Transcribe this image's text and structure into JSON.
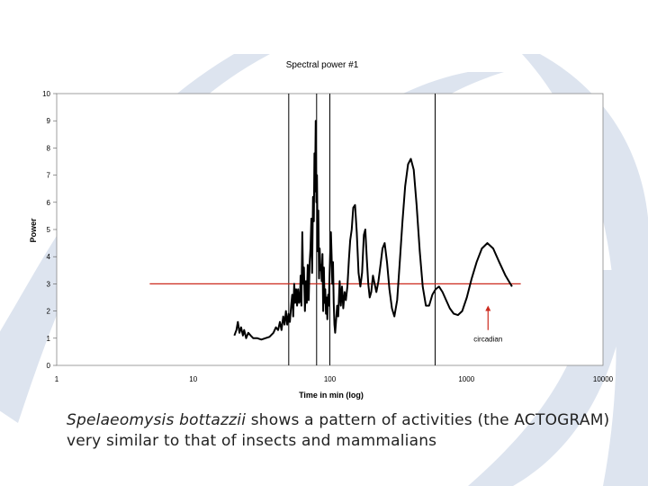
{
  "caption": {
    "species": "Spelaeomysis bottazzii",
    "text": " shows a pattern of activities (the ACTOGRAM) very similar to that of insects and mammalians"
  },
  "colors": {
    "background_decoration": "#dde4ef",
    "curve": "#000000",
    "threshold_line": "#cc2a1e",
    "annotation_arrow": "#cc2a1e",
    "vertical_markers": "#000000"
  },
  "chart_data": {
    "type": "line",
    "title": "Spectral power #1",
    "xlabel": "Time in min (log)",
    "ylabel": "Power",
    "x_scale": "log",
    "xlim": [
      1,
      10000
    ],
    "ylim": [
      0,
      10
    ],
    "x_ticks": [
      1,
      10,
      100,
      1000,
      10000
    ],
    "x_tick_labels": [
      "1",
      "10",
      "100",
      "1000",
      "10000"
    ],
    "y_ticks": [
      0,
      1,
      2,
      3,
      4,
      5,
      6,
      7,
      8,
      9,
      10
    ],
    "y_tick_labels": [
      "0",
      "1",
      "2",
      "3",
      "4",
      "5",
      "6",
      "7",
      "8",
      "9",
      "10"
    ],
    "grid": false,
    "threshold": {
      "y": 3,
      "x_start": 4.8,
      "x_end": 2500
    },
    "vertical_markers_x": [
      50,
      80,
      100,
      590
    ],
    "annotation": {
      "text": "circadian",
      "x": 1440,
      "arrow_from_y": 1.3,
      "arrow_to_y": 2.2
    },
    "series": [
      {
        "points": [
          [
            20.0,
            1.1
          ],
          [
            20.7,
            1.3
          ],
          [
            21.2,
            1.6
          ],
          [
            21.8,
            1.2
          ],
          [
            22.4,
            1.4
          ],
          [
            23.1,
            1.1
          ],
          [
            23.6,
            1.3
          ],
          [
            24.4,
            1.0
          ],
          [
            25.3,
            1.2
          ],
          [
            26.3,
            1.1
          ],
          [
            27.5,
            1.0
          ],
          [
            29.5,
            1.0
          ],
          [
            31.5,
            0.95
          ],
          [
            33.7,
            1.0
          ],
          [
            36.1,
            1.05
          ],
          [
            38.6,
            1.2
          ],
          [
            40.3,
            1.4
          ],
          [
            41.8,
            1.3
          ],
          [
            43.1,
            1.6
          ],
          [
            44.3,
            1.3
          ],
          [
            45.6,
            1.8
          ],
          [
            46.6,
            1.5
          ],
          [
            47.7,
            2.0
          ],
          [
            48.7,
            1.5
          ],
          [
            49.8,
            1.9
          ],
          [
            51.0,
            1.6
          ],
          [
            52.1,
            2.2
          ],
          [
            53.0,
            2.6
          ],
          [
            53.9,
            1.8
          ],
          [
            54.8,
            3.0
          ],
          [
            55.7,
            2.3
          ],
          [
            56.6,
            2.8
          ],
          [
            57.6,
            2.2
          ],
          [
            58.5,
            2.8
          ],
          [
            59.6,
            2.3
          ],
          [
            60.4,
            2.4
          ],
          [
            61.1,
            3.3
          ],
          [
            61.9,
            2.2
          ],
          [
            62.9,
            4.9
          ],
          [
            63.7,
            3.0
          ],
          [
            64.6,
            3.6
          ],
          [
            65.7,
            2.0
          ],
          [
            66.8,
            3.1
          ],
          [
            67.8,
            2.3
          ],
          [
            68.9,
            3.7
          ],
          [
            70.0,
            2.4
          ],
          [
            71.2,
            3.8
          ],
          [
            72.2,
            4.3
          ],
          [
            73.3,
            5.4
          ],
          [
            74.2,
            3.4
          ],
          [
            75.3,
            6.2
          ],
          [
            76.3,
            5.3
          ],
          [
            77.1,
            7.8
          ],
          [
            77.9,
            6.4
          ],
          [
            78.8,
            9.0
          ],
          [
            79.6,
            6.0
          ],
          [
            80.5,
            7.0
          ],
          [
            81.5,
            4.2
          ],
          [
            82.4,
            5.7
          ],
          [
            83.4,
            3.2
          ],
          [
            84.3,
            4.3
          ],
          [
            85.4,
            3.5
          ],
          [
            86.3,
            3.7
          ],
          [
            87.3,
            3.1
          ],
          [
            88.3,
            4.1
          ],
          [
            89.4,
            2.0
          ],
          [
            90.5,
            3.6
          ],
          [
            91.5,
            2.3
          ],
          [
            92.6,
            2.8
          ],
          [
            93.7,
            1.9
          ],
          [
            94.8,
            2.5
          ],
          [
            95.9,
            1.7
          ],
          [
            97.2,
            2.6
          ],
          [
            98.2,
            2.2
          ],
          [
            99.4,
            3.2
          ],
          [
            100.7,
            4.3
          ],
          [
            101.8,
            4.9
          ],
          [
            102.9,
            4.1
          ],
          [
            104.2,
            3.0
          ],
          [
            105.5,
            3.8
          ],
          [
            106.7,
            2.3
          ],
          [
            108.0,
            1.5
          ],
          [
            109.3,
            1.2
          ],
          [
            110.6,
            1.5
          ],
          [
            113.0,
            2.2
          ],
          [
            115.2,
            1.8
          ],
          [
            117.9,
            3.1
          ],
          [
            120.3,
            2.2
          ],
          [
            122.7,
            2.9
          ],
          [
            125.4,
            2.1
          ],
          [
            128.2,
            2.7
          ],
          [
            131.0,
            2.4
          ],
          [
            134.5,
            2.9
          ],
          [
            138.0,
            3.9
          ],
          [
            141.0,
            4.6
          ],
          [
            144.6,
            5.0
          ],
          [
            148.4,
            5.8
          ],
          [
            152.9,
            5.9
          ],
          [
            157.5,
            4.9
          ],
          [
            162.3,
            3.4
          ],
          [
            167.2,
            2.9
          ],
          [
            172.2,
            3.4
          ],
          [
            177.4,
            4.8
          ],
          [
            181.9,
            5.0
          ],
          [
            186.5,
            3.9
          ],
          [
            191.2,
            3.0
          ],
          [
            196.0,
            2.5
          ],
          [
            201.0,
            2.7
          ],
          [
            207.0,
            3.3
          ],
          [
            213.0,
            3.0
          ],
          [
            219.0,
            2.7
          ],
          [
            227.0,
            3.1
          ],
          [
            235.0,
            3.7
          ],
          [
            243.0,
            4.3
          ],
          [
            252.0,
            4.5
          ],
          [
            262.0,
            3.8
          ],
          [
            273.0,
            2.8
          ],
          [
            285.0,
            2.1
          ],
          [
            297.0,
            1.8
          ],
          [
            311.0,
            2.4
          ],
          [
            325.0,
            3.8
          ],
          [
            340.0,
            5.3
          ],
          [
            356.0,
            6.6
          ],
          [
            374.0,
            7.4
          ],
          [
            392.0,
            7.6
          ],
          [
            411.0,
            7.2
          ],
          [
            432.0,
            5.9
          ],
          [
            455.0,
            4.2
          ],
          [
            479.0,
            2.9
          ],
          [
            505.0,
            2.2
          ],
          [
            533.0,
            2.2
          ],
          [
            563.0,
            2.6
          ],
          [
            595.0,
            2.8
          ],
          [
            630.0,
            2.9
          ],
          [
            668.0,
            2.7
          ],
          [
            710.0,
            2.4
          ],
          [
            756.0,
            2.1
          ],
          [
            808.0,
            1.9
          ],
          [
            866.0,
            1.85
          ],
          [
            932.0,
            2.0
          ],
          [
            1007.0,
            2.5
          ],
          [
            1092.0,
            3.2
          ],
          [
            1188.0,
            3.8
          ],
          [
            1298.0,
            4.3
          ],
          [
            1424.0,
            4.5
          ],
          [
            1570.0,
            4.3
          ],
          [
            1738.0,
            3.8
          ],
          [
            1932.0,
            3.3
          ],
          [
            2155.0,
            2.9
          ]
        ]
      }
    ]
  }
}
